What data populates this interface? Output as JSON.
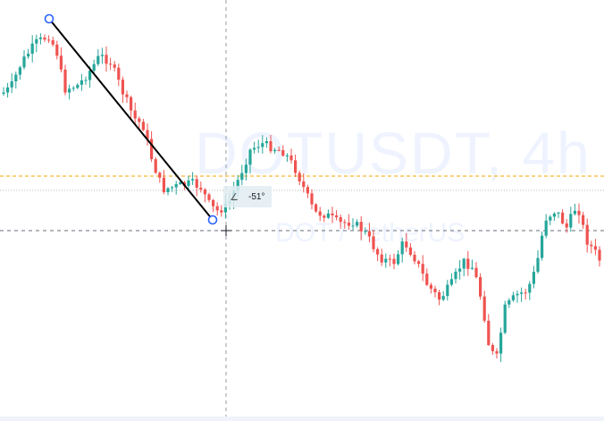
{
  "watermark": {
    "symbol": "DOTUSDT, 4h",
    "description": "DOT / TetherUS"
  },
  "trendline_tool": {
    "angle_label": "-51°"
  },
  "colors": {
    "up": "#26a69a",
    "down": "#ef5350",
    "trendline": "#000000",
    "handle": "#2962ff",
    "last_price_line": "#f7a600",
    "crosshair": "#9598a1"
  },
  "icons": {
    "angle": "angle-icon",
    "crosshair": "crosshair-icon"
  }
}
